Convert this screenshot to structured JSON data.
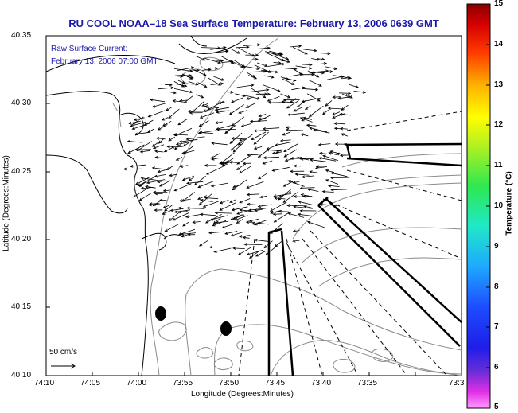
{
  "title": "RU COOL  NOAA–18  Sea Surface Temperature:  February 13, 2006 0639 GMT",
  "annotation": {
    "line1": "Raw Surface Current:",
    "line2": "February 13, 2006 07:00 GMT"
  },
  "scale_label": "50 cm/s",
  "axes": {
    "xlabel": "Longitude (Degrees:Minutes)",
    "ylabel": "Latitude (Degrees:Minutes)",
    "x_ticks": [
      "74:10",
      "74:05",
      "74:00",
      "73:55",
      "73:50",
      "73:45",
      "73:40",
      "73:35",
      "73:3"
    ],
    "y_ticks": [
      "40:35",
      "40:30",
      "40:25",
      "40:20",
      "40:15",
      "40:10"
    ]
  },
  "colorbar": {
    "label": "Temperature (°C)",
    "ticks": [
      "15",
      "14",
      "13",
      "12",
      "11",
      "10",
      "9",
      "8",
      "7",
      "6",
      "5"
    ],
    "range": [
      5,
      15
    ]
  },
  "colors": {
    "title": "#1a1aa8",
    "land": "#ffffff",
    "contours": "#888888"
  }
}
